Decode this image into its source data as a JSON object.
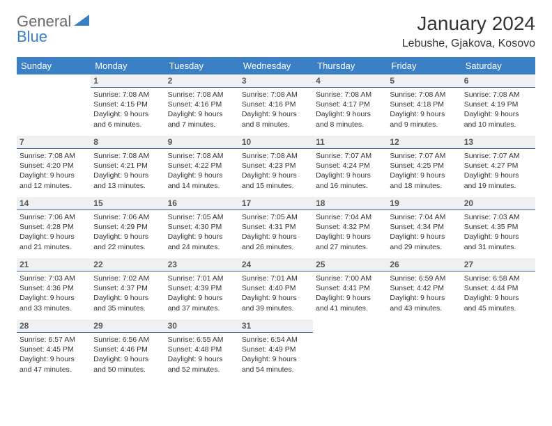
{
  "logo": {
    "text1": "General",
    "text2": "Blue"
  },
  "title": "January 2024",
  "location": "Lebushe, Gjakova, Kosovo",
  "colors": {
    "header_bg": "#3b7fc4",
    "header_fg": "#ffffff",
    "row_band": "#eff0f1",
    "row_border": "#2f5f9a",
    "text": "#333333",
    "logo_gray": "#6a6a6a",
    "logo_blue": "#3b7fc4"
  },
  "weekdays": [
    "Sunday",
    "Monday",
    "Tuesday",
    "Wednesday",
    "Thursday",
    "Friday",
    "Saturday"
  ],
  "weeks": [
    [
      {
        "n": "",
        "sr": "",
        "ss": "",
        "d1": "",
        "d2": ""
      },
      {
        "n": "1",
        "sr": "Sunrise: 7:08 AM",
        "ss": "Sunset: 4:15 PM",
        "d1": "Daylight: 9 hours",
        "d2": "and 6 minutes."
      },
      {
        "n": "2",
        "sr": "Sunrise: 7:08 AM",
        "ss": "Sunset: 4:16 PM",
        "d1": "Daylight: 9 hours",
        "d2": "and 7 minutes."
      },
      {
        "n": "3",
        "sr": "Sunrise: 7:08 AM",
        "ss": "Sunset: 4:16 PM",
        "d1": "Daylight: 9 hours",
        "d2": "and 8 minutes."
      },
      {
        "n": "4",
        "sr": "Sunrise: 7:08 AM",
        "ss": "Sunset: 4:17 PM",
        "d1": "Daylight: 9 hours",
        "d2": "and 8 minutes."
      },
      {
        "n": "5",
        "sr": "Sunrise: 7:08 AM",
        "ss": "Sunset: 4:18 PM",
        "d1": "Daylight: 9 hours",
        "d2": "and 9 minutes."
      },
      {
        "n": "6",
        "sr": "Sunrise: 7:08 AM",
        "ss": "Sunset: 4:19 PM",
        "d1": "Daylight: 9 hours",
        "d2": "and 10 minutes."
      }
    ],
    [
      {
        "n": "7",
        "sr": "Sunrise: 7:08 AM",
        "ss": "Sunset: 4:20 PM",
        "d1": "Daylight: 9 hours",
        "d2": "and 12 minutes."
      },
      {
        "n": "8",
        "sr": "Sunrise: 7:08 AM",
        "ss": "Sunset: 4:21 PM",
        "d1": "Daylight: 9 hours",
        "d2": "and 13 minutes."
      },
      {
        "n": "9",
        "sr": "Sunrise: 7:08 AM",
        "ss": "Sunset: 4:22 PM",
        "d1": "Daylight: 9 hours",
        "d2": "and 14 minutes."
      },
      {
        "n": "10",
        "sr": "Sunrise: 7:08 AM",
        "ss": "Sunset: 4:23 PM",
        "d1": "Daylight: 9 hours",
        "d2": "and 15 minutes."
      },
      {
        "n": "11",
        "sr": "Sunrise: 7:07 AM",
        "ss": "Sunset: 4:24 PM",
        "d1": "Daylight: 9 hours",
        "d2": "and 16 minutes."
      },
      {
        "n": "12",
        "sr": "Sunrise: 7:07 AM",
        "ss": "Sunset: 4:25 PM",
        "d1": "Daylight: 9 hours",
        "d2": "and 18 minutes."
      },
      {
        "n": "13",
        "sr": "Sunrise: 7:07 AM",
        "ss": "Sunset: 4:27 PM",
        "d1": "Daylight: 9 hours",
        "d2": "and 19 minutes."
      }
    ],
    [
      {
        "n": "14",
        "sr": "Sunrise: 7:06 AM",
        "ss": "Sunset: 4:28 PM",
        "d1": "Daylight: 9 hours",
        "d2": "and 21 minutes."
      },
      {
        "n": "15",
        "sr": "Sunrise: 7:06 AM",
        "ss": "Sunset: 4:29 PM",
        "d1": "Daylight: 9 hours",
        "d2": "and 22 minutes."
      },
      {
        "n": "16",
        "sr": "Sunrise: 7:05 AM",
        "ss": "Sunset: 4:30 PM",
        "d1": "Daylight: 9 hours",
        "d2": "and 24 minutes."
      },
      {
        "n": "17",
        "sr": "Sunrise: 7:05 AM",
        "ss": "Sunset: 4:31 PM",
        "d1": "Daylight: 9 hours",
        "d2": "and 26 minutes."
      },
      {
        "n": "18",
        "sr": "Sunrise: 7:04 AM",
        "ss": "Sunset: 4:32 PM",
        "d1": "Daylight: 9 hours",
        "d2": "and 27 minutes."
      },
      {
        "n": "19",
        "sr": "Sunrise: 7:04 AM",
        "ss": "Sunset: 4:34 PM",
        "d1": "Daylight: 9 hours",
        "d2": "and 29 minutes."
      },
      {
        "n": "20",
        "sr": "Sunrise: 7:03 AM",
        "ss": "Sunset: 4:35 PM",
        "d1": "Daylight: 9 hours",
        "d2": "and 31 minutes."
      }
    ],
    [
      {
        "n": "21",
        "sr": "Sunrise: 7:03 AM",
        "ss": "Sunset: 4:36 PM",
        "d1": "Daylight: 9 hours",
        "d2": "and 33 minutes."
      },
      {
        "n": "22",
        "sr": "Sunrise: 7:02 AM",
        "ss": "Sunset: 4:37 PM",
        "d1": "Daylight: 9 hours",
        "d2": "and 35 minutes."
      },
      {
        "n": "23",
        "sr": "Sunrise: 7:01 AM",
        "ss": "Sunset: 4:39 PM",
        "d1": "Daylight: 9 hours",
        "d2": "and 37 minutes."
      },
      {
        "n": "24",
        "sr": "Sunrise: 7:01 AM",
        "ss": "Sunset: 4:40 PM",
        "d1": "Daylight: 9 hours",
        "d2": "and 39 minutes."
      },
      {
        "n": "25",
        "sr": "Sunrise: 7:00 AM",
        "ss": "Sunset: 4:41 PM",
        "d1": "Daylight: 9 hours",
        "d2": "and 41 minutes."
      },
      {
        "n": "26",
        "sr": "Sunrise: 6:59 AM",
        "ss": "Sunset: 4:42 PM",
        "d1": "Daylight: 9 hours",
        "d2": "and 43 minutes."
      },
      {
        "n": "27",
        "sr": "Sunrise: 6:58 AM",
        "ss": "Sunset: 4:44 PM",
        "d1": "Daylight: 9 hours",
        "d2": "and 45 minutes."
      }
    ],
    [
      {
        "n": "28",
        "sr": "Sunrise: 6:57 AM",
        "ss": "Sunset: 4:45 PM",
        "d1": "Daylight: 9 hours",
        "d2": "and 47 minutes."
      },
      {
        "n": "29",
        "sr": "Sunrise: 6:56 AM",
        "ss": "Sunset: 4:46 PM",
        "d1": "Daylight: 9 hours",
        "d2": "and 50 minutes."
      },
      {
        "n": "30",
        "sr": "Sunrise: 6:55 AM",
        "ss": "Sunset: 4:48 PM",
        "d1": "Daylight: 9 hours",
        "d2": "and 52 minutes."
      },
      {
        "n": "31",
        "sr": "Sunrise: 6:54 AM",
        "ss": "Sunset: 4:49 PM",
        "d1": "Daylight: 9 hours",
        "d2": "and 54 minutes."
      },
      {
        "n": "",
        "sr": "",
        "ss": "",
        "d1": "",
        "d2": ""
      },
      {
        "n": "",
        "sr": "",
        "ss": "",
        "d1": "",
        "d2": ""
      },
      {
        "n": "",
        "sr": "",
        "ss": "",
        "d1": "",
        "d2": ""
      }
    ]
  ]
}
